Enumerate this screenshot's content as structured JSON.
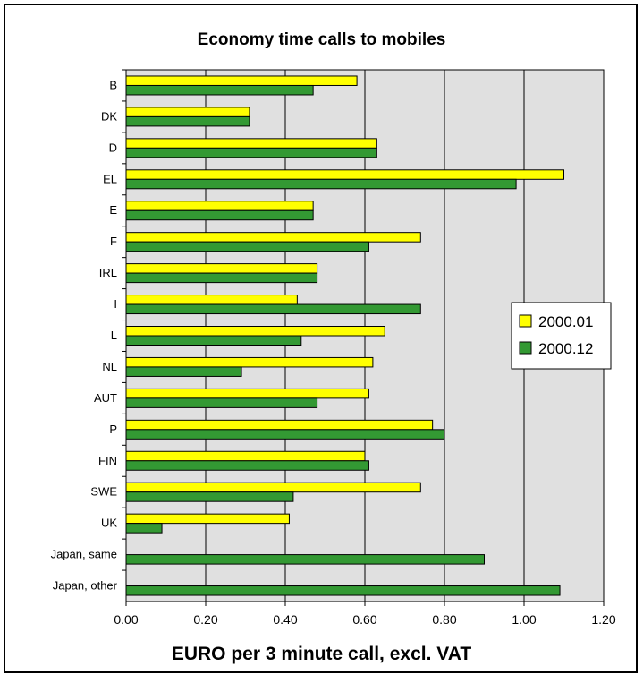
{
  "chart_data": {
    "type": "bar",
    "orientation": "horizontal",
    "title": "Economy time calls to mobiles",
    "xlabel": "EURO per 3 minute call, excl. VAT",
    "ylabel": "",
    "categories": [
      "B",
      "DK",
      "D",
      "EL",
      "E",
      "F",
      "IRL",
      "I",
      "L",
      "NL",
      "AUT",
      "P",
      "FIN",
      "SWE",
      "UK",
      "Japan, same",
      "Japan, other"
    ],
    "series": [
      {
        "name": "2000.01",
        "color": "#FFFF00",
        "values": [
          0.58,
          0.31,
          0.63,
          1.1,
          0.47,
          0.74,
          0.48,
          0.43,
          0.65,
          0.62,
          0.61,
          0.77,
          0.6,
          0.74,
          0.41,
          null,
          null
        ]
      },
      {
        "name": "2000.12",
        "color": "#339933",
        "values": [
          0.47,
          0.31,
          0.63,
          0.98,
          0.47,
          0.61,
          0.48,
          0.74,
          0.44,
          0.29,
          0.48,
          0.8,
          0.61,
          0.42,
          0.09,
          0.9,
          1.09
        ]
      }
    ],
    "xlim": [
      0,
      1.2
    ],
    "xticks": [
      "0.00",
      "0.20",
      "0.40",
      "0.60",
      "0.80",
      "1.00",
      "1.20"
    ],
    "grid": "vertical",
    "legend_position": "right",
    "background_color": "#E0E0E0"
  }
}
